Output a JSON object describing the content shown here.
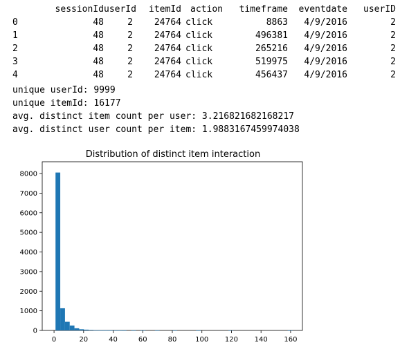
{
  "dataframe": {
    "columns": [
      "sessionId",
      "userId",
      "itemId",
      "action",
      "timeframe",
      "eventdate",
      "userID"
    ],
    "index": [
      "0",
      "1",
      "2",
      "3",
      "4"
    ],
    "rows": [
      [
        "48",
        "2",
        "24764",
        "click",
        "8863",
        "4/9/2016",
        "2"
      ],
      [
        "48",
        "2",
        "24764",
        "click",
        "496381",
        "4/9/2016",
        "2"
      ],
      [
        "48",
        "2",
        "24764",
        "click",
        "265216",
        "4/9/2016",
        "2"
      ],
      [
        "48",
        "2",
        "24764",
        "click",
        "519975",
        "4/9/2016",
        "2"
      ],
      [
        "48",
        "2",
        "24764",
        "click",
        "456437",
        "4/9/2016",
        "2"
      ]
    ]
  },
  "output_lines": [
    "unique userId: 9999",
    "unique itemId: 16177",
    "avg. distinct item count per user: 3.216821682168217",
    "avg. distinct user count per item: 1.9883167459974038"
  ],
  "chart_data": {
    "type": "bar",
    "title": "Distribution of distinct item interaction",
    "xlabel": "",
    "ylabel": "",
    "xlim": [
      -8,
      168
    ],
    "ylim": [
      0,
      8600
    ],
    "xticks": [
      0,
      20,
      40,
      60,
      80,
      100,
      120,
      140,
      160
    ],
    "yticks": [
      0,
      1000,
      2000,
      3000,
      4000,
      5000,
      6000,
      7000,
      8000
    ],
    "bin_width": 3.2,
    "bins": [
      {
        "x0": 1.0,
        "x1": 4.2,
        "count": 8050
      },
      {
        "x0": 4.2,
        "x1": 7.4,
        "count": 1130
      },
      {
        "x0": 7.4,
        "x1": 10.6,
        "count": 440
      },
      {
        "x0": 10.6,
        "x1": 13.8,
        "count": 250
      },
      {
        "x0": 13.8,
        "x1": 17.0,
        "count": 110
      },
      {
        "x0": 17.0,
        "x1": 20.2,
        "count": 60
      },
      {
        "x0": 20.2,
        "x1": 23.4,
        "count": 40
      },
      {
        "x0": 23.4,
        "x1": 26.6,
        "count": 25
      },
      {
        "x0": 26.6,
        "x1": 29.8,
        "count": 10
      },
      {
        "x0": 29.8,
        "x1": 33.0,
        "count": 6
      },
      {
        "x0": 33.0,
        "x1": 36.2,
        "count": 4
      },
      {
        "x0": 36.2,
        "x1": 39.4,
        "count": 3
      },
      {
        "x0": 39.4,
        "x1": 42.6,
        "count": 2
      },
      {
        "x0": 42.6,
        "x1": 45.8,
        "count": 2
      },
      {
        "x0": 45.8,
        "x1": 49.0,
        "count": 1
      },
      {
        "x0": 52.2,
        "x1": 55.4,
        "count": 1
      },
      {
        "x0": 58.6,
        "x1": 61.8,
        "count": 1
      },
      {
        "x0": 68.2,
        "x1": 71.4,
        "count": 1
      },
      {
        "x0": 80.0,
        "x1": 83.2,
        "count": 1
      },
      {
        "x0": 96.0,
        "x1": 99.2,
        "count": 1
      },
      {
        "x0": 118.0,
        "x1": 121.2,
        "count": 1
      },
      {
        "x0": 158.0,
        "x1": 161.2,
        "count": 1
      }
    ],
    "bar_color": "#1f77b4",
    "grid": false,
    "legend": "none"
  }
}
